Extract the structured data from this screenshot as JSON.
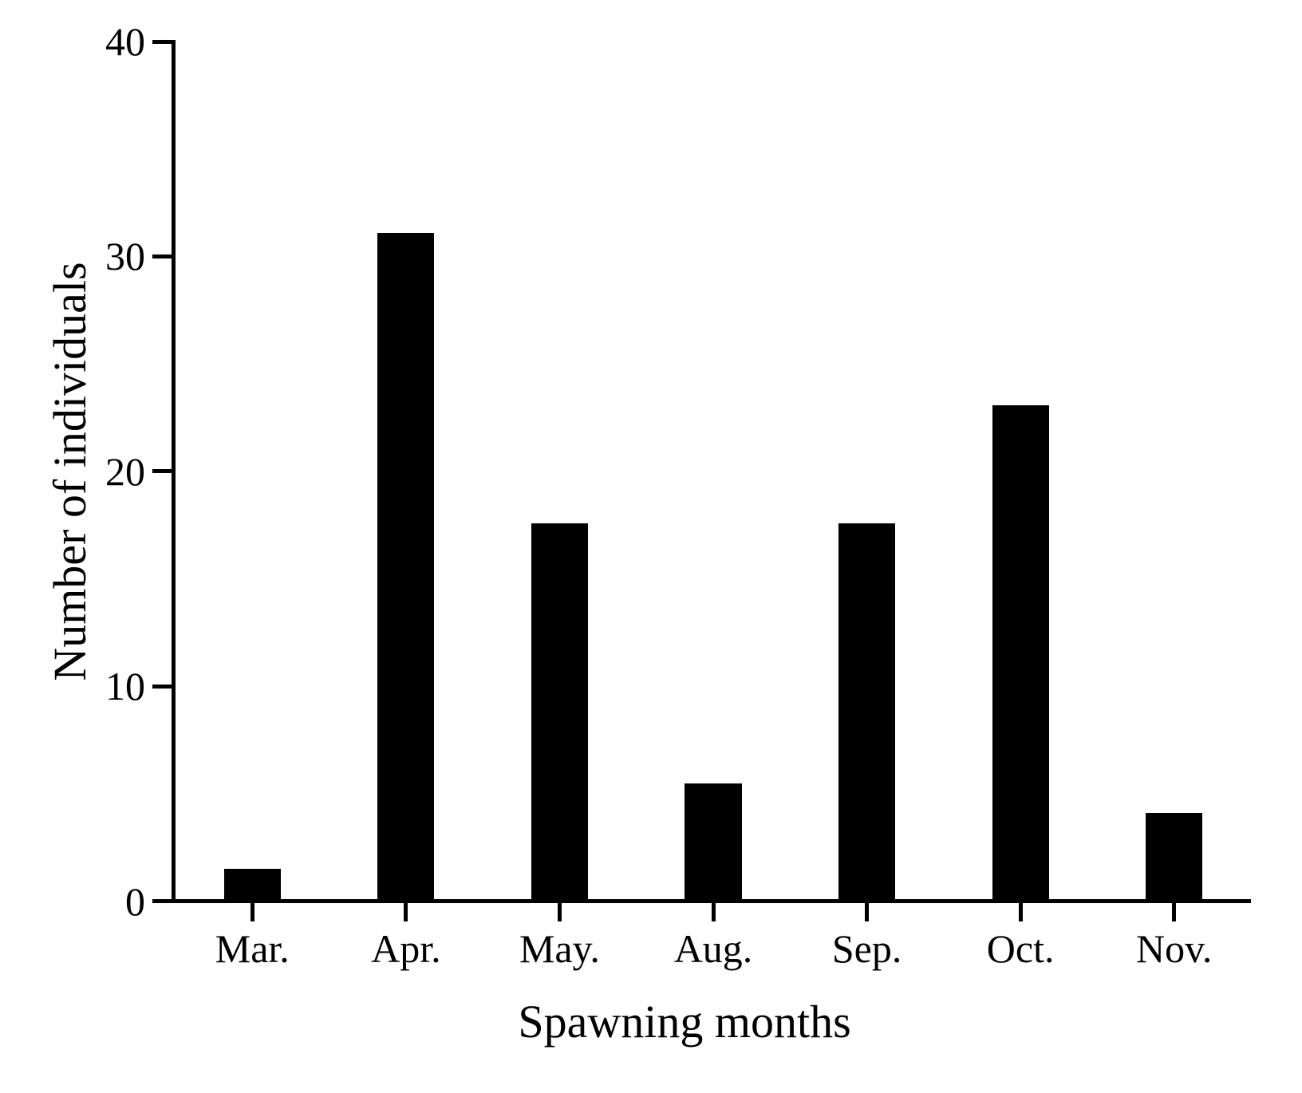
{
  "figure": {
    "background": "#ffffff",
    "axis_color": "#000000"
  },
  "chart_data": {
    "type": "bar",
    "title": "",
    "xlabel": "Spawning months",
    "ylabel": "Number of individuals",
    "categories": [
      "Mar.",
      "Apr.",
      "May.",
      "Aug.",
      "Sep.",
      "Oct.",
      "Nov."
    ],
    "values": [
      1.4,
      31,
      17.5,
      5.4,
      17.5,
      23,
      4
    ],
    "ylim": [
      0,
      40
    ],
    "yticks": [
      0,
      10,
      20,
      30,
      40
    ],
    "bar_color": "#000000",
    "grid": false,
    "legend": "none"
  }
}
